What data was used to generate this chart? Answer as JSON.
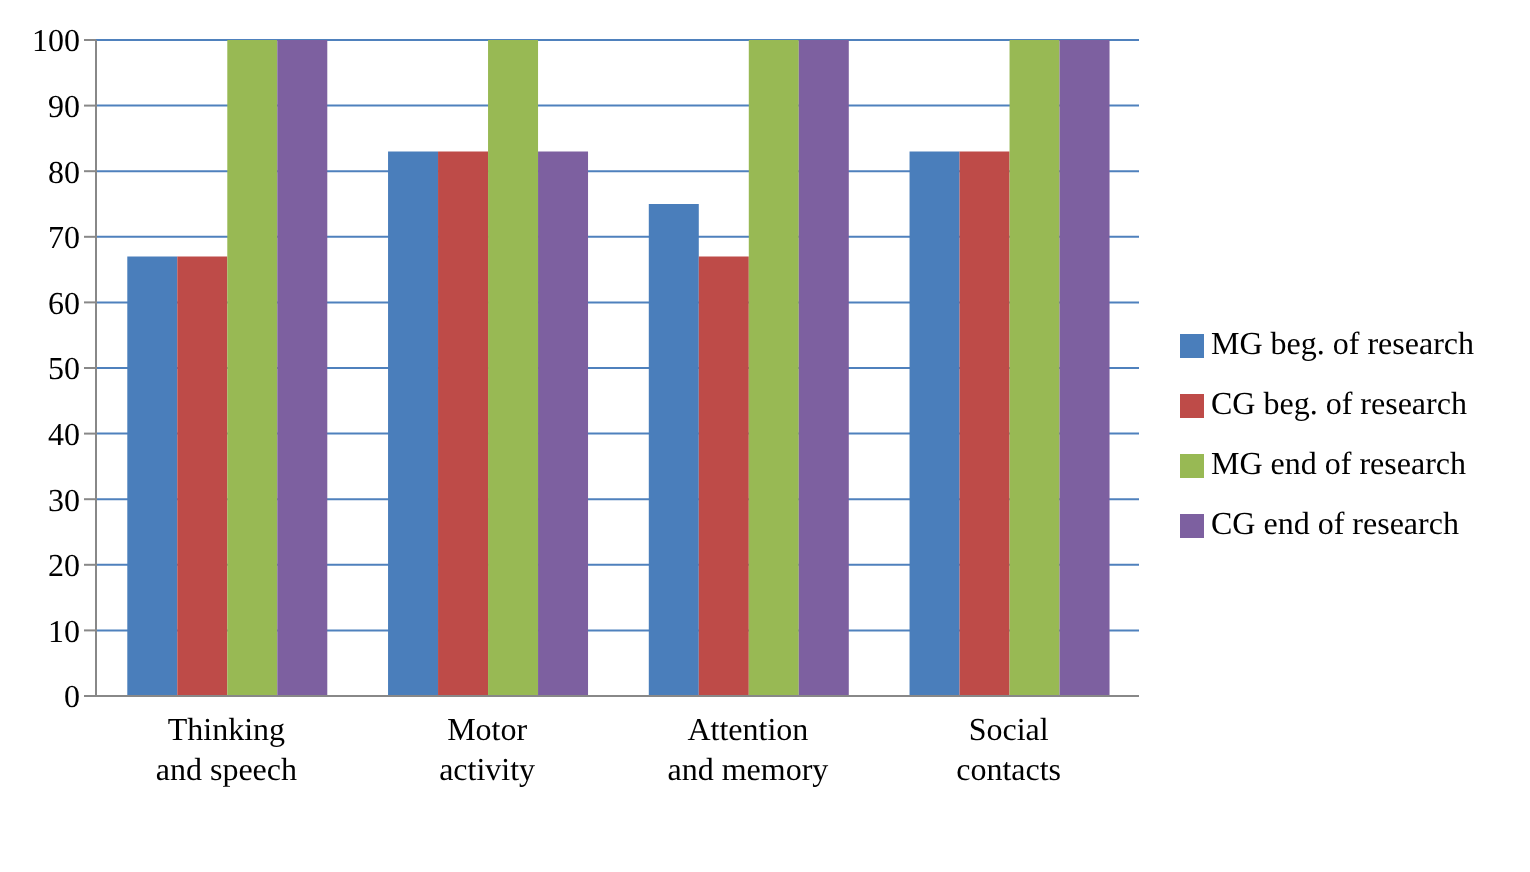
{
  "chart_data": {
    "type": "bar",
    "categories": [
      "Thinking and speech",
      "Motor activity",
      "Attention and memory",
      "Social contacts"
    ],
    "series": [
      {
        "name": "MG beg. of research",
        "color": "#4a7ebb",
        "values": [
          67,
          83,
          75,
          83
        ]
      },
      {
        "name": "CG beg. of research",
        "color": "#be4b48",
        "values": [
          67,
          83,
          67,
          83
        ]
      },
      {
        "name": "MG end of research",
        "color": "#98b954",
        "values": [
          100,
          100,
          100,
          100
        ]
      },
      {
        "name": "CG end of research",
        "color": "#7d60a0",
        "values": [
          100,
          83,
          100,
          100
        ]
      }
    ],
    "ylim": [
      0,
      100
    ],
    "yticks": [
      0,
      10,
      20,
      30,
      40,
      50,
      60,
      70,
      80,
      90,
      100
    ],
    "grid": "y",
    "legend": "right"
  }
}
